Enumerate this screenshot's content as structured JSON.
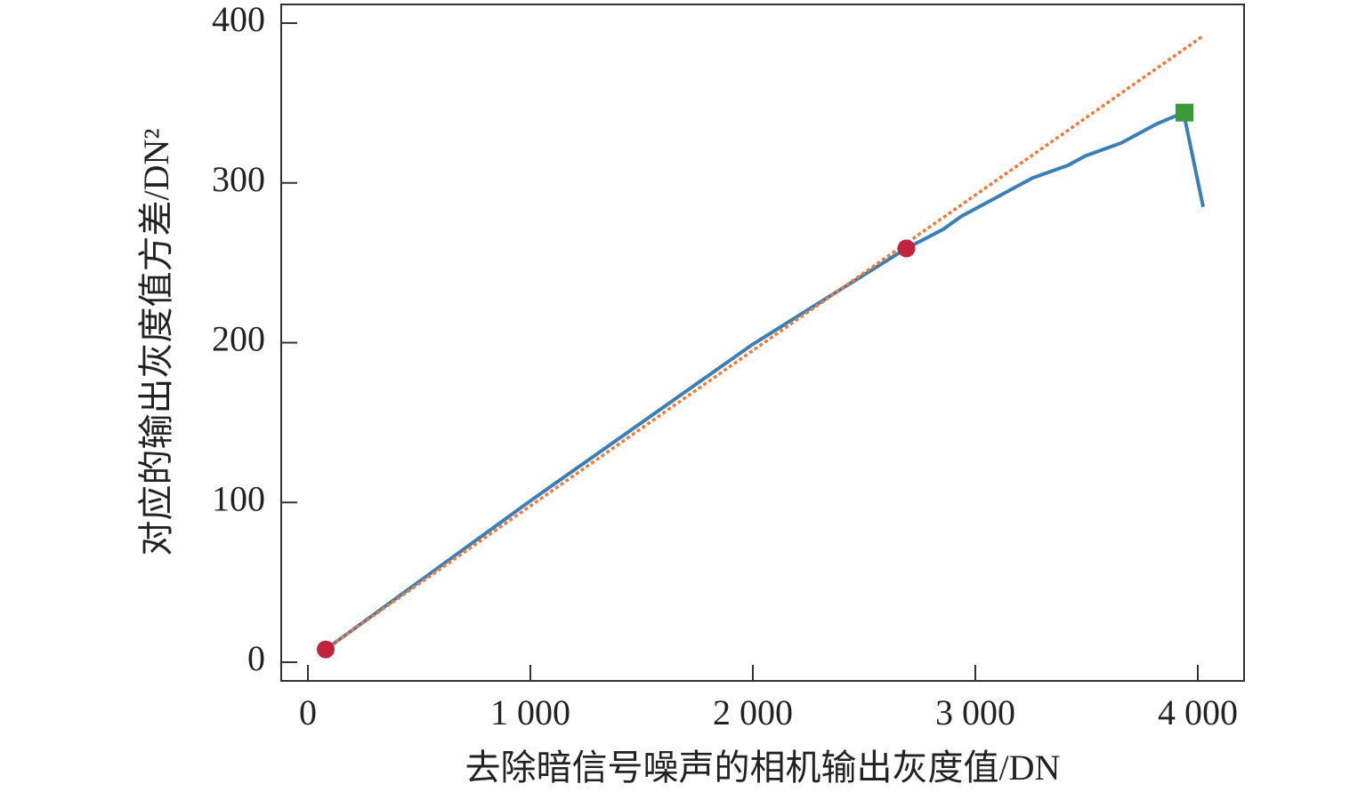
{
  "chart_data": {
    "type": "line",
    "xlabel": "去除暗信号噪声的相机输出灰度值/DN",
    "ylabel": "对应的输出灰度值方差/DN²",
    "xlim": [
      -120,
      4208
    ],
    "ylim": [
      -11.7,
      411.7
    ],
    "xticks": [
      0,
      {
        "value": 1000,
        "label": "1 000"
      },
      {
        "value": 2000,
        "label": "2 000"
      },
      {
        "value": 3000,
        "label": "3 000"
      },
      {
        "value": 4000,
        "label": "4 000"
      }
    ],
    "yticks": [
      0,
      100,
      200,
      300,
      400
    ],
    "series": [
      {
        "style": "line",
        "color": "#3a7fb5",
        "x": [
          80,
          1000,
          2000,
          2690,
          2856,
          2936,
          3016,
          3256,
          3416,
          3496,
          3656,
          3816,
          3936,
          4024
        ],
        "values": [
          8,
          101,
          199,
          259,
          271,
          279,
          285,
          303,
          311,
          317,
          325,
          337,
          344,
          285
        ]
      },
      {
        "style": "dotted",
        "color": "#f07a3a",
        "x": [
          80,
          4024
        ],
        "values": [
          8.3,
          392
        ]
      },
      {
        "style": "circle",
        "color": "#c0243c",
        "x": [
          80,
          2690
        ],
        "values": [
          8,
          259
        ]
      },
      {
        "style": "square",
        "color": "#3a9a3a",
        "x": [
          3940
        ],
        "values": [
          344
        ]
      }
    ]
  }
}
